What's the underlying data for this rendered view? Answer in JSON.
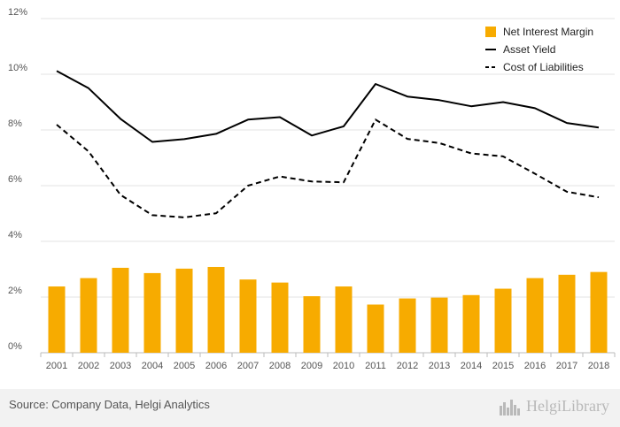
{
  "chart_data": {
    "type": "bar+line",
    "categories": [
      "2001",
      "2002",
      "2003",
      "2004",
      "2005",
      "2006",
      "2007",
      "2008",
      "2009",
      "2010",
      "2011",
      "2012",
      "2013",
      "2014",
      "2015",
      "2016",
      "2017",
      "2018"
    ],
    "series": [
      {
        "name": "Net Interest Margin",
        "type": "bar",
        "color": "#f7ab00",
        "values": [
          2.38,
          2.68,
          3.05,
          2.86,
          3.02,
          3.08,
          2.63,
          2.52,
          2.03,
          2.38,
          1.73,
          1.95,
          1.98,
          2.07,
          2.3,
          2.68,
          2.8,
          2.9
        ]
      },
      {
        "name": "Asset Yield",
        "type": "line",
        "style": "solid",
        "color": "#000000",
        "values": [
          10.12,
          9.5,
          8.4,
          7.57,
          7.67,
          7.86,
          8.37,
          8.46,
          7.8,
          8.13,
          9.65,
          9.2,
          9.07,
          8.85,
          9.0,
          8.78,
          8.25,
          8.09
        ]
      },
      {
        "name": "Cost of Liabilities",
        "type": "line",
        "style": "dashed",
        "color": "#000000",
        "values": [
          8.19,
          7.23,
          5.67,
          4.94,
          4.86,
          5.01,
          6.0,
          6.33,
          6.15,
          6.12,
          8.37,
          7.68,
          7.53,
          7.16,
          7.05,
          6.43,
          5.78,
          5.58
        ]
      }
    ],
    "yticks": [
      "0%",
      "2%",
      "4%",
      "6%",
      "8%",
      "10%",
      "12%"
    ],
    "ylim": [
      0,
      12
    ],
    "grid": true,
    "legend_position": "top-right"
  },
  "footer": {
    "source": "Source: Company Data, Helgi Analytics",
    "brand": "HelgiLibrary",
    "brand_icon": "city-skyline-icon"
  }
}
